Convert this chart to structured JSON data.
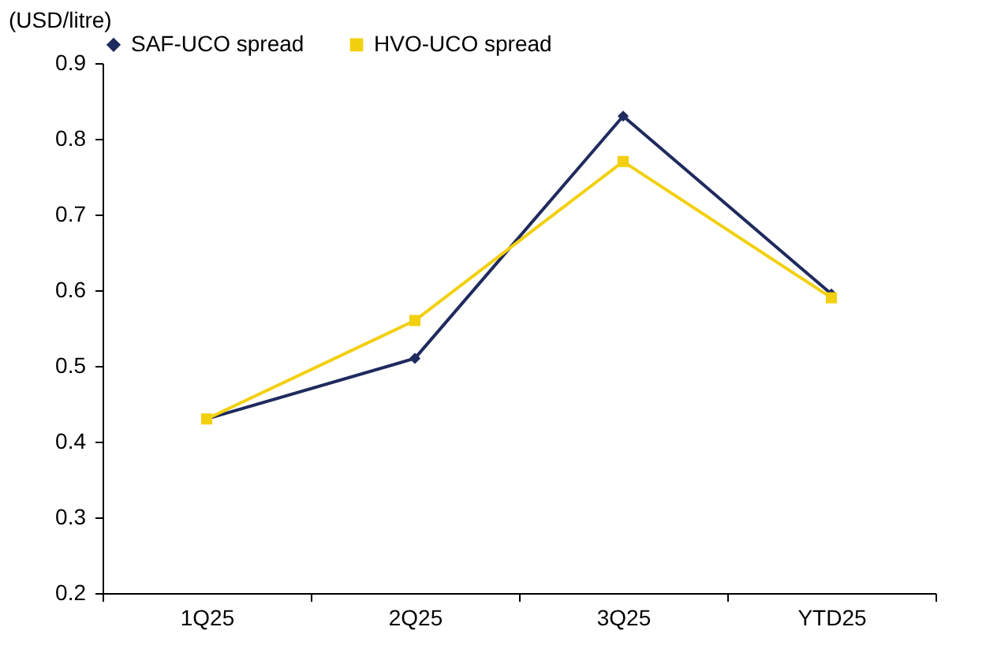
{
  "chart_data": {
    "type": "line",
    "ylabel": "(USD/litre)",
    "categories": [
      "1Q25",
      "2Q25",
      "3Q25",
      "YTD25"
    ],
    "series": [
      {
        "name": "SAF-UCO spread",
        "color": "#1f2a5e",
        "marker": "diamond",
        "values": [
          0.43,
          0.51,
          0.83,
          0.595
        ]
      },
      {
        "name": "HVO-UCO spread",
        "color": "#f2d00f",
        "marker": "square",
        "values": [
          0.43,
          0.56,
          0.77,
          0.59
        ]
      }
    ],
    "ylim": [
      0.2,
      0.9
    ],
    "yticks": [
      0.2,
      0.3,
      0.4,
      0.5,
      0.6,
      0.7,
      0.8,
      0.9
    ],
    "grid": false,
    "legend": "top",
    "line_style": "solid"
  }
}
